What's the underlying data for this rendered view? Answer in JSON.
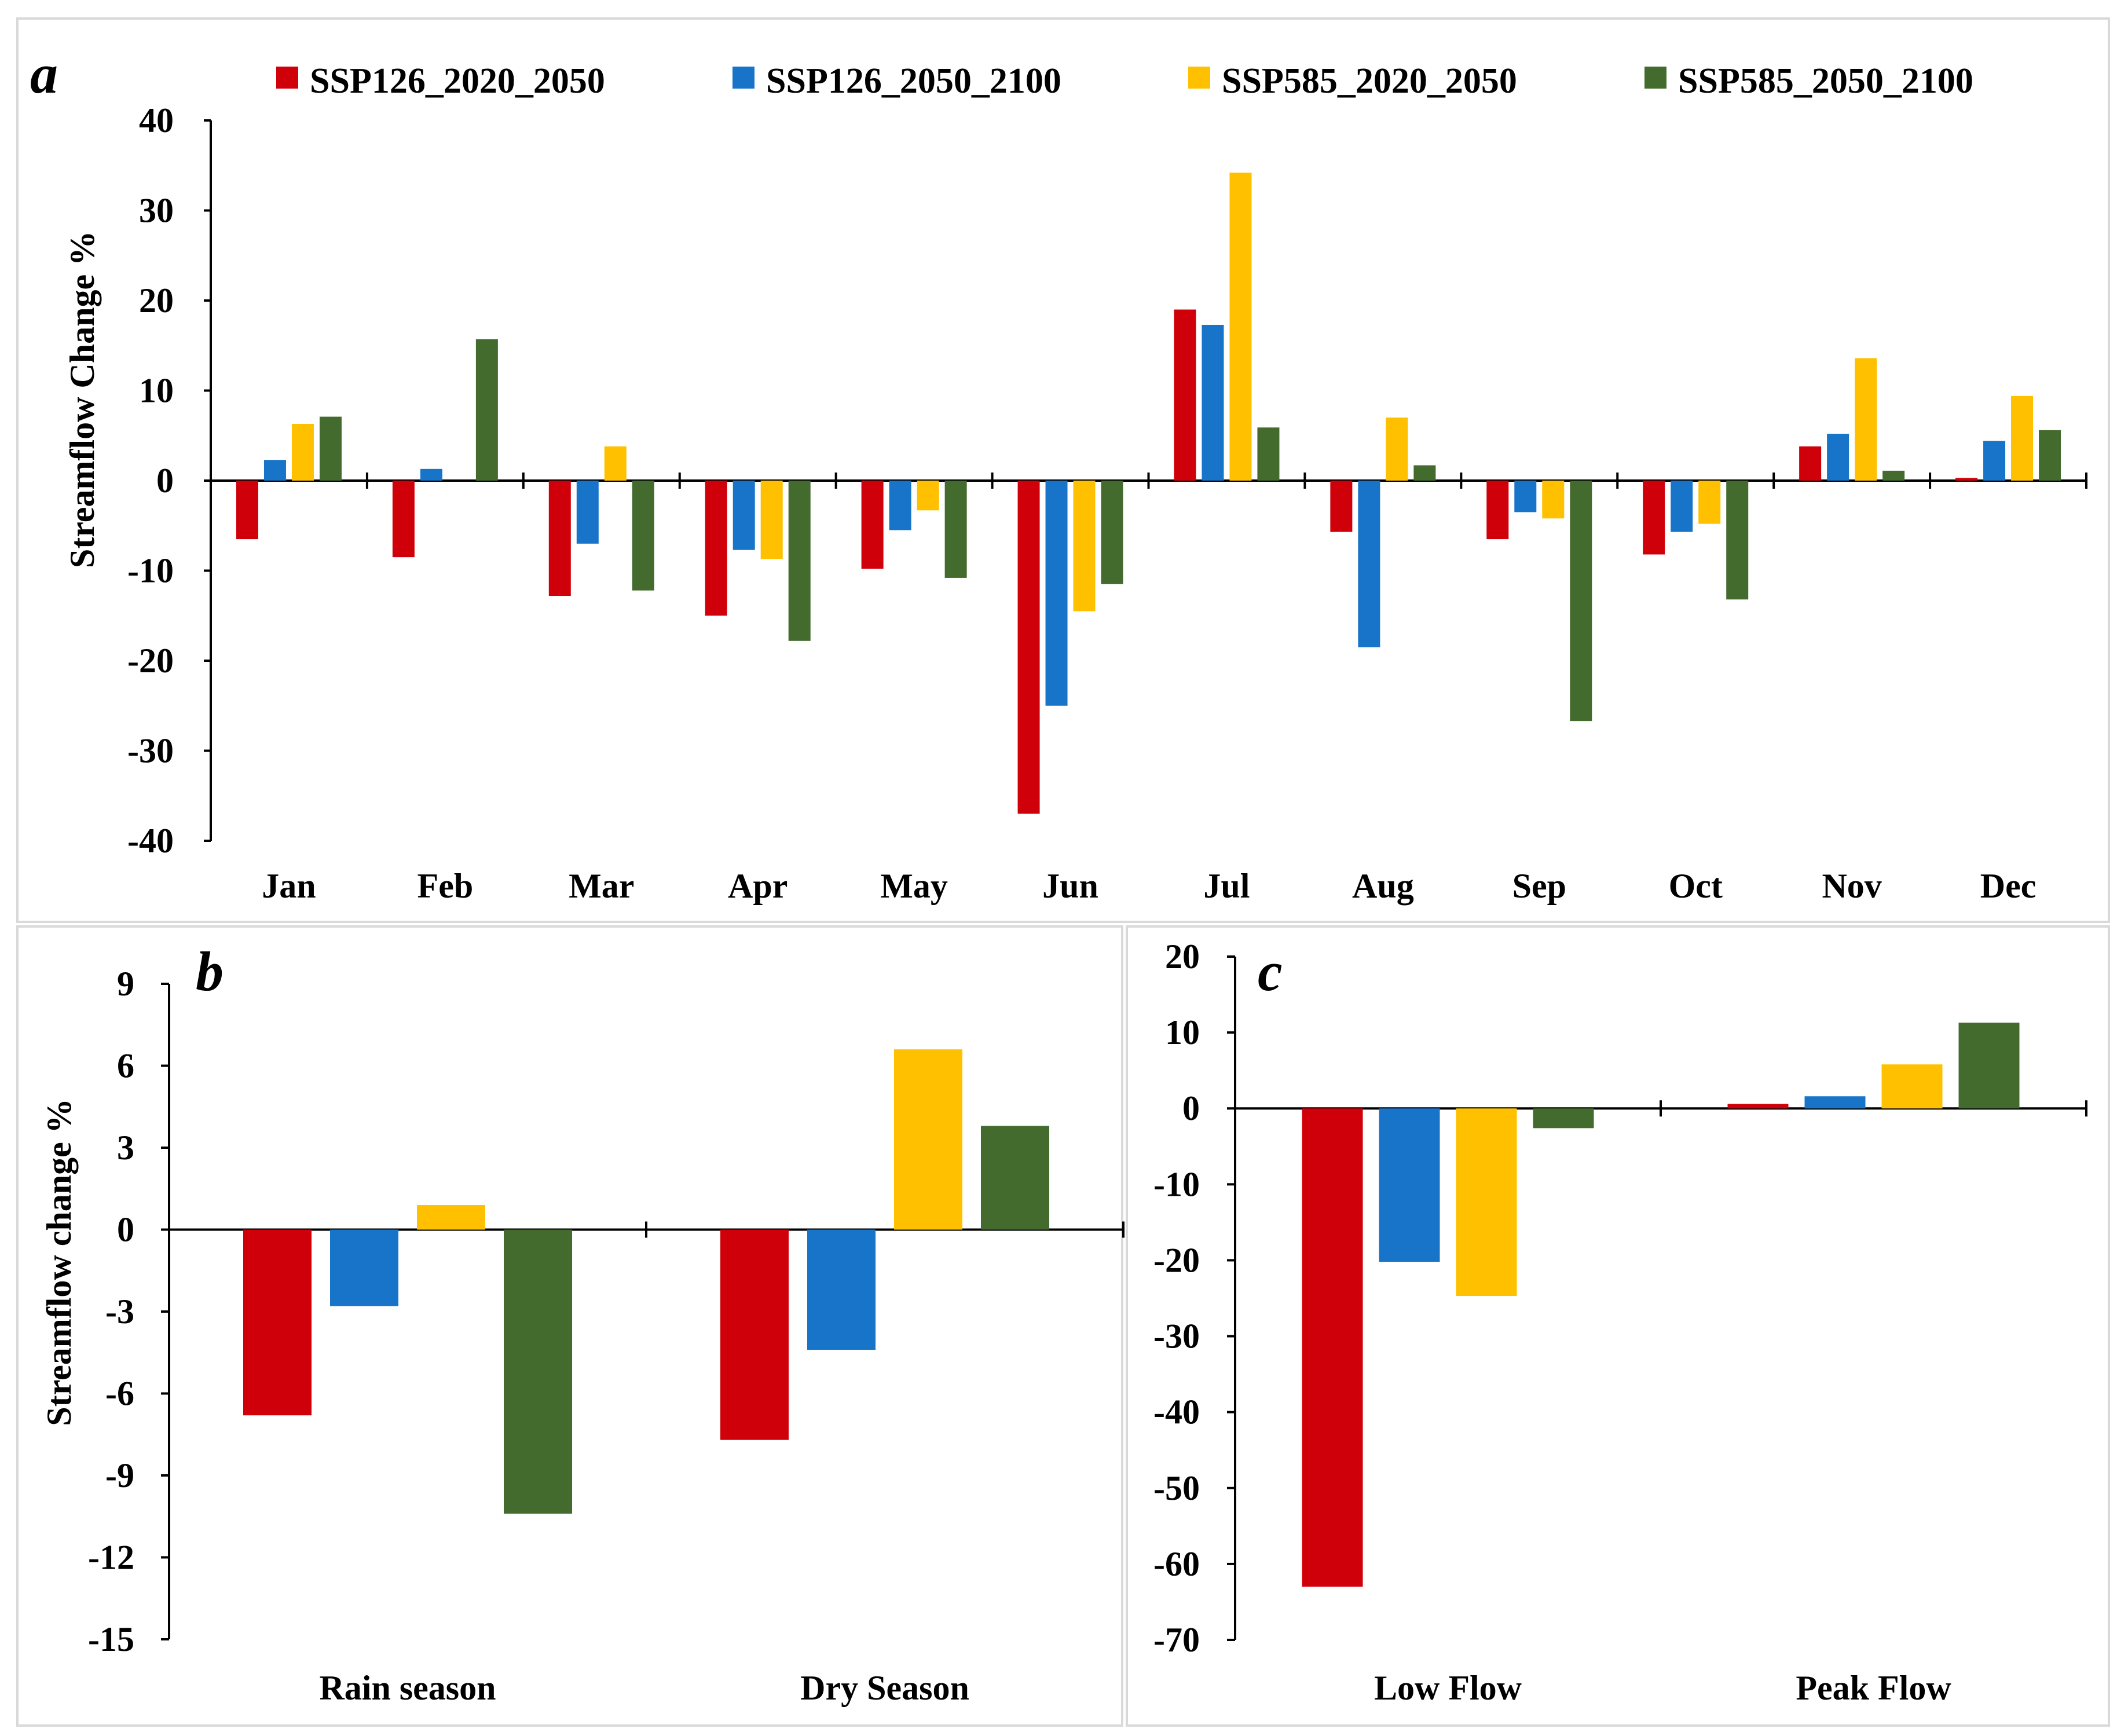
{
  "colors": {
    "SSP126_2020_2050": "#d0000a",
    "SSP126_2050_2100": "#1874c8",
    "SSP585_2020_2050": "#ffc000",
    "SSP585_2050_2100": "#436b2e"
  },
  "legend": [
    "SSP126_2020_2050",
    "SSP126_2050_2100",
    "SSP585_2020_2050",
    "SSP585_2050_2100"
  ],
  "chart_data": [
    {
      "panel": "a",
      "type": "bar",
      "ylabel": "Streamflow Change %",
      "xlabel": "",
      "ylim": [
        -40,
        40
      ],
      "yticks": [
        "40",
        "30",
        "20",
        "10",
        "0",
        "-10",
        "-20",
        "-30",
        "-40"
      ],
      "categories": [
        "Jan",
        "Feb",
        "Mar",
        "Apr",
        "May",
        "Jun",
        "Jul",
        "Aug",
        "Sep",
        "Oct",
        "Nov",
        "Dec"
      ],
      "series": [
        {
          "name": "SSP126_2020_2050",
          "values": [
            -6.5,
            -8.5,
            -12.8,
            -15,
            -9.8,
            -37,
            19,
            -5.7,
            -6.5,
            -8.2,
            3.8,
            0.3
          ]
        },
        {
          "name": "SSP126_2050_2100",
          "values": [
            2.3,
            1.3,
            -7,
            -7.7,
            -5.5,
            -25,
            17.3,
            -18.5,
            -3.5,
            -5.7,
            5.2,
            4.4
          ]
        },
        {
          "name": "SSP585_2020_2050",
          "values": [
            6.3,
            0,
            3.8,
            -8.7,
            -3.3,
            -14.5,
            34.2,
            7,
            -4.2,
            -4.8,
            13.6,
            9.4
          ]
        },
        {
          "name": "SSP585_2050_2100",
          "values": [
            7.1,
            15.7,
            -12.2,
            -17.8,
            -10.8,
            -11.5,
            5.9,
            1.7,
            -26.7,
            -13.2,
            1.1,
            5.6
          ]
        }
      ]
    },
    {
      "panel": "b",
      "type": "bar",
      "ylabel": "Streamflow change %",
      "xlabel": "",
      "ylim": [
        -15,
        9
      ],
      "yticks": [
        "9",
        "6",
        "3",
        "0",
        "-3",
        "-6",
        "-9",
        "-12",
        "-15"
      ],
      "categories": [
        "Rain season",
        "Dry Season"
      ],
      "series": [
        {
          "name": "SSP126_2020_2050",
          "values": [
            -6.8,
            -7.7
          ]
        },
        {
          "name": "SSP126_2050_2100",
          "values": [
            -2.8,
            -4.4
          ]
        },
        {
          "name": "SSP585_2020_2050",
          "values": [
            0.9,
            6.6
          ]
        },
        {
          "name": "SSP585_2050_2100",
          "values": [
            -10.4,
            3.8
          ]
        }
      ]
    },
    {
      "panel": "c",
      "type": "bar",
      "ylabel": "",
      "xlabel": "",
      "ylim": [
        -70,
        20
      ],
      "yticks": [
        "20",
        "10",
        "0",
        "-10",
        "-20",
        "-30",
        "-40",
        "-50",
        "-60",
        "-70"
      ],
      "categories": [
        "Low Flow",
        "Peak Flow"
      ],
      "series": [
        {
          "name": "SSP126_2020_2050",
          "values": [
            -63,
            0.6
          ]
        },
        {
          "name": "SSP126_2050_2100",
          "values": [
            -20.2,
            1.6
          ]
        },
        {
          "name": "SSP585_2020_2050",
          "values": [
            -24.7,
            5.8
          ]
        },
        {
          "name": "SSP585_2050_2100",
          "values": [
            -2.6,
            11.3
          ]
        }
      ]
    }
  ]
}
